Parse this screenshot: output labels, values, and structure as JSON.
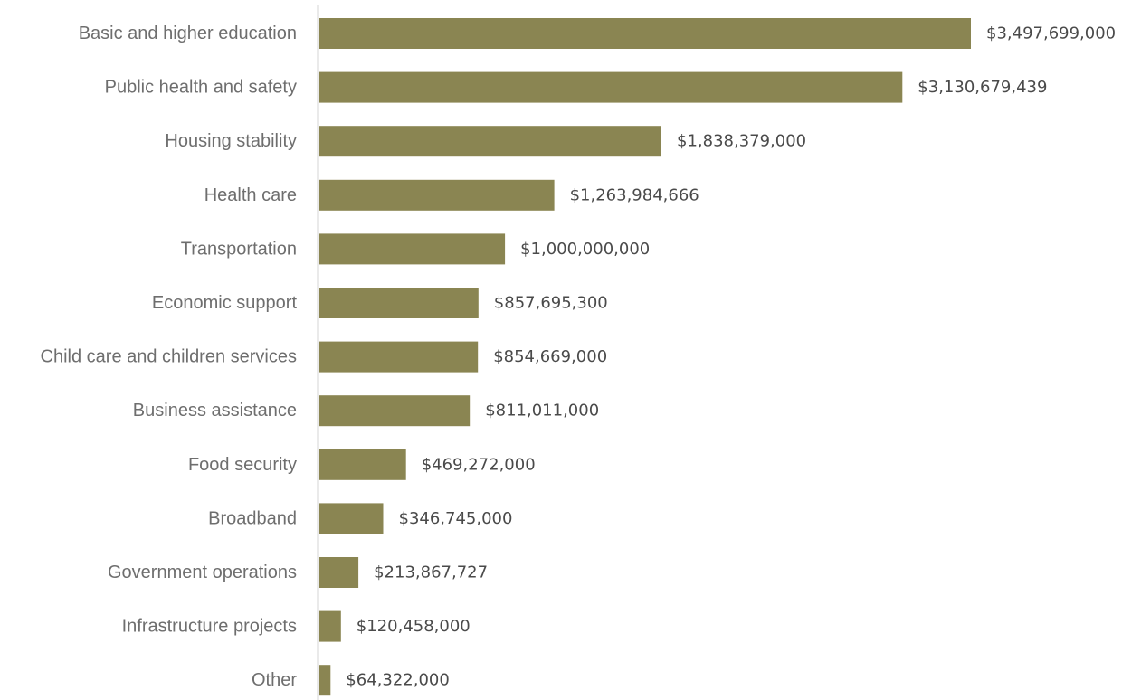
{
  "chart_data": {
    "type": "bar",
    "orientation": "horizontal",
    "title": "",
    "xlabel": "",
    "ylabel": "",
    "grid": false,
    "legend": "none",
    "bar_color": "#8a8552",
    "axis_color": "#d4d4d4",
    "xlim": [
      0,
      3497699000
    ],
    "categories": [
      "Basic and higher education",
      "Public health and safety",
      "Housing stability",
      "Health care",
      "Transportation",
      "Economic support",
      "Child care and children services",
      "Business assistance",
      "Food security",
      "Broadband",
      "Government operations",
      "Infrastructure projects",
      "Other"
    ],
    "values": [
      3497699000,
      3130679439,
      1838379000,
      1263984666,
      1000000000,
      857695300,
      854669000,
      811011000,
      469272000,
      346745000,
      213867727,
      120458000,
      64322000
    ],
    "value_labels": [
      "$3,497,699,000",
      "$3,130,679,439",
      "$1,838,379,000",
      "$1,263,984,666",
      "$1,000,000,000",
      "$857,695,300",
      "$854,669,000",
      "$811,011,000",
      "$469,272,000",
      "$346,745,000",
      "$213,867,727",
      "$120,458,000",
      "$64,322,000"
    ]
  }
}
